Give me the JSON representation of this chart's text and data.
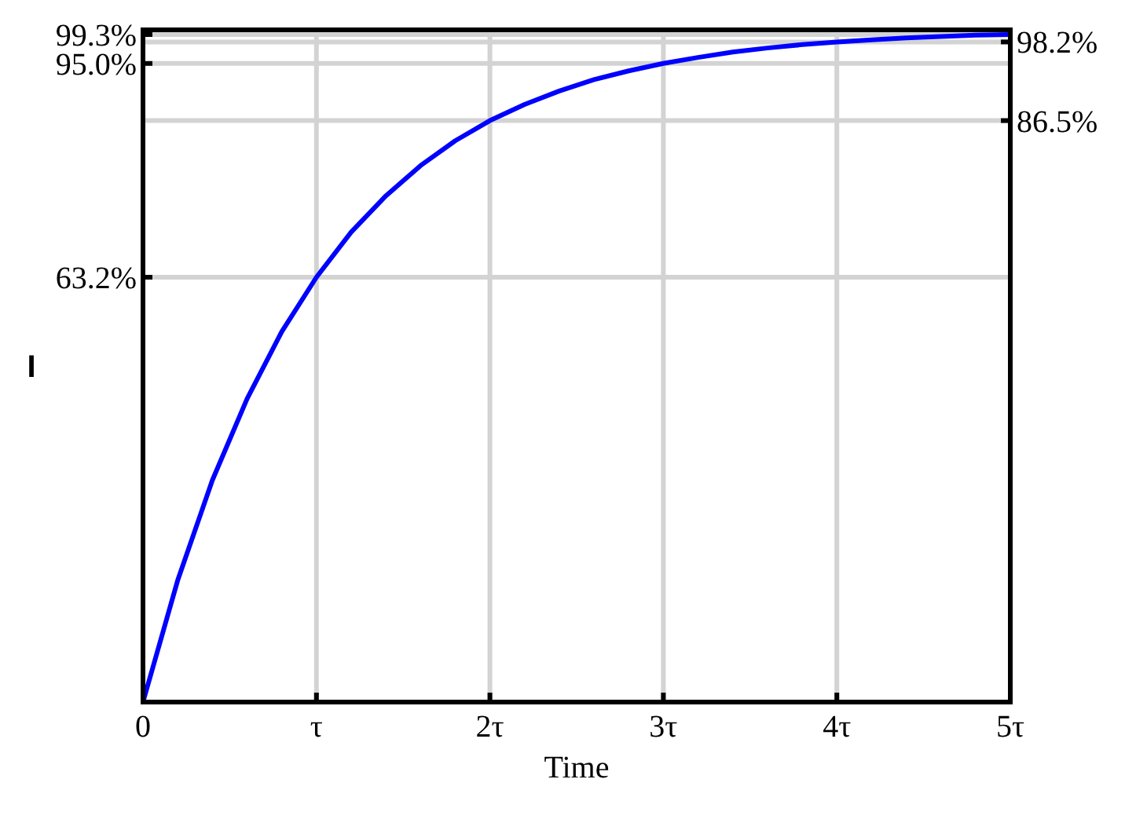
{
  "chart_data": {
    "type": "line",
    "xlabel": "Time",
    "ylabel": "I",
    "x": [
      0,
      0.2,
      0.4,
      0.6,
      0.8,
      1,
      1.2,
      1.4,
      1.6,
      1.8,
      2,
      2.2,
      2.4,
      2.6,
      2.8,
      3,
      3.2,
      3.4,
      3.6,
      3.8,
      4,
      4.2,
      4.4,
      4.6,
      4.8,
      5
    ],
    "series": [
      {
        "color": "#0000ff",
        "values": [
          0,
          18.1,
          33.0,
          45.1,
          55.1,
          63.2,
          69.9,
          75.3,
          79.8,
          83.5,
          86.5,
          88.9,
          90.9,
          92.6,
          93.9,
          95.0,
          95.9,
          96.7,
          97.3,
          97.8,
          98.2,
          98.5,
          98.8,
          99.0,
          99.2,
          99.3
        ]
      }
    ],
    "xlim": [
      0,
      5
    ],
    "xticks": [
      {
        "value": 0,
        "label": "0"
      },
      {
        "value": 1,
        "label": "τ"
      },
      {
        "value": 2,
        "label": "2τ"
      },
      {
        "value": 3,
        "label": "3τ"
      },
      {
        "value": 4,
        "label": "4τ"
      },
      {
        "value": 5,
        "label": "5τ"
      }
    ],
    "ylim": [
      0,
      100
    ],
    "yticks": [
      {
        "value": 63.2,
        "label": "63.2%"
      },
      {
        "value": 95,
        "label": "95.0%"
      },
      {
        "value": 99.3,
        "label": "99.3%"
      }
    ],
    "y2lim": [
      0,
      100
    ],
    "y2ticks": [
      {
        "value": 86.5,
        "label": "86.5%"
      },
      {
        "value": 98.2,
        "label": "98.2%"
      }
    ],
    "grid": true,
    "marker": "none",
    "line_style": "solid"
  }
}
